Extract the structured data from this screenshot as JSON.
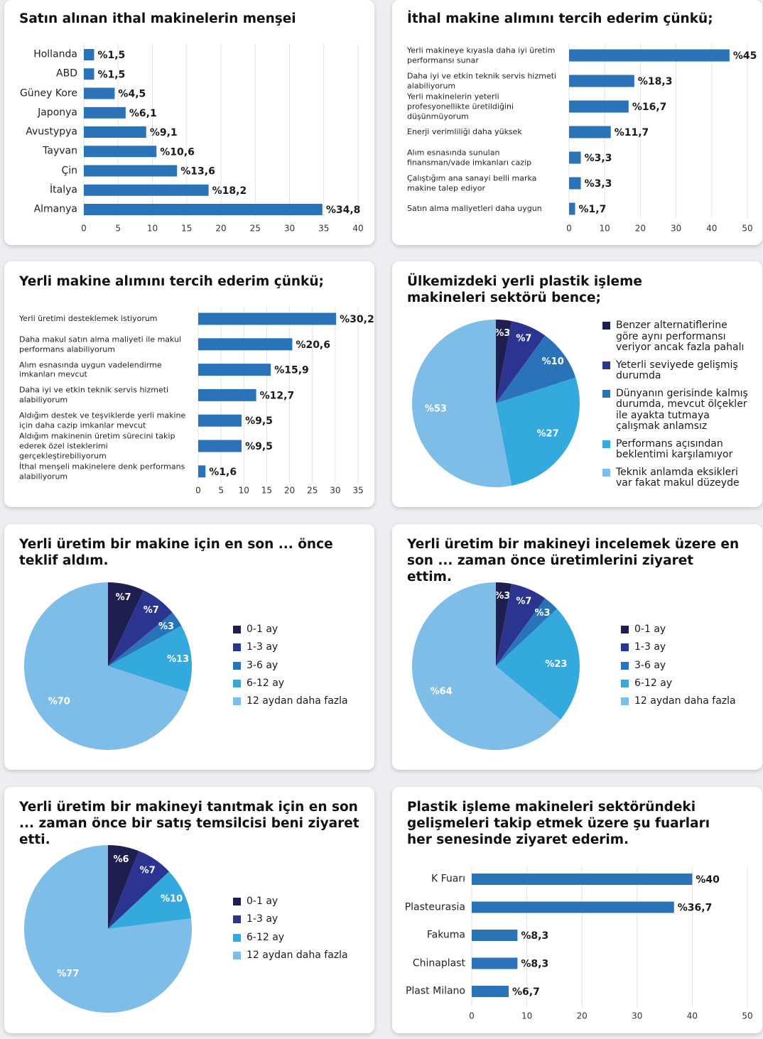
{
  "chart_data": [
    {
      "type": "bar",
      "title": "Satın alınan ithal makinelerin menşei",
      "categories": [
        "Hollanda",
        "ABD",
        "Güney Kore",
        "Japonya",
        "Avustурya",
        "Tayvan",
        "Çin",
        "İtalya",
        "Almanya"
      ],
      "values": [
        1.5,
        1.5,
        4.5,
        6.1,
        9.1,
        10.6,
        13.6,
        18.2,
        34.8
      ],
      "value_labels": [
        "%1,5",
        "%1,5",
        "%4,5",
        "%6,1",
        "%9,1",
        "%10,6",
        "%13,6",
        "%18,2",
        "%34,8"
      ],
      "color": "#2a73b8",
      "xlim": [
        0,
        40
      ],
      "xticks": [
        0,
        5,
        10,
        15,
        20,
        25,
        30,
        35,
        40
      ],
      "grid": true
    },
    {
      "type": "bar",
      "title": "İthal makine alımını tercih ederim çünkü;",
      "categories": [
        "Yerli makineye kıyasla daha iyi üretim performansı sunar",
        "Daha iyi ve etkin teknik servis hizmeti alabiliyorum",
        "Yerli makinelerin yeterli profesyonellikte üretildiğini düşünmüyorum",
        "Enerji verimliliği daha yüksek",
        "Alım esnasında sunulan finansman/vade imkanları cazip",
        "Çalıştığım ana sanayi belli marka makine talep ediyor",
        "Satın alma maliyetleri daha uygun"
      ],
      "values": [
        45,
        18.3,
        16.7,
        11.7,
        3.3,
        3.3,
        1.7
      ],
      "value_labels": [
        "%45",
        "%18,3",
        "%16,7",
        "%11,7",
        "%3,3",
        "%3,3",
        "%1,7"
      ],
      "color": "#2a73b8",
      "xlim": [
        0,
        50
      ],
      "xticks": [
        0,
        10,
        20,
        30,
        40,
        50
      ],
      "grid": true
    },
    {
      "type": "bar",
      "title": "Yerli makine alımını tercih ederim çünkü;",
      "categories": [
        "Yerli üretimi desteklemek istiyorum",
        "Daha makul satın alma maliyeti ile makul performans alabiliyorum",
        "Alım esnasında uygun vadelendirme imkanları mevcut",
        "Daha iyi ve etkin teknik servis hizmeti alabiliyorum",
        "Aldığım destek ve teşviklerde yerli makine için daha cazip imkanlar mevcut",
        "Aldığım makinenin üretim sürecini takip ederek özel isteklerimi gerçekleştirebiliyorum",
        "İthal menşeli makinelere denk performans alabiliyorum"
      ],
      "values": [
        30.2,
        20.6,
        15.9,
        12.7,
        9.5,
        9.5,
        1.6
      ],
      "value_labels": [
        "%30,2",
        "%20,6",
        "%15,9",
        "%12,7",
        "%9,5",
        "%9,5",
        "%1,6"
      ],
      "color": "#2a73b8",
      "xlim": [
        0,
        35
      ],
      "xticks": [
        0,
        5,
        10,
        15,
        20,
        25,
        30,
        35
      ],
      "grid": true
    },
    {
      "type": "pie",
      "title": "Ülkemizdeki yerli plastik işleme makineleri sektörü bence;",
      "categories": [
        "Benzer alternatiflerine göre aynı performansı veriyor ancak fazla pahalı",
        "Yeterli seviyede gelişmiş durumda",
        "Dünyanın gerisinde kalmış durumda, mevcut ölçekler ile ayakta tutmaya çalışmak anlamsız",
        "Performans açısından beklentimi karşılamıyor",
        "Teknik anlamda eksikleri var fakat makul düzeyde"
      ],
      "values": [
        3,
        7,
        10,
        27,
        53
      ],
      "value_labels": [
        "%3",
        "%7",
        "%10",
        "%27",
        "%53"
      ],
      "colors": [
        "#1e1f4f",
        "#2b3590",
        "#2a73b8",
        "#33a9de",
        "#7dbde7"
      ]
    },
    {
      "type": "pie",
      "title": "Yerli üretim bir makine için en son ... önce teklif aldım.",
      "categories": [
        "0-1 ay",
        "1-3 ay",
        "3-6 ay",
        "6-12 ay",
        "12 aydan daha fazla"
      ],
      "values": [
        7,
        7,
        3,
        13,
        70
      ],
      "value_labels": [
        "%7",
        "%7",
        "%3",
        "%13",
        "%70"
      ],
      "colors": [
        "#1e1f4f",
        "#2b3590",
        "#2a73b8",
        "#33a9de",
        "#7dbde7"
      ]
    },
    {
      "type": "pie",
      "title": "Yerli üretim bir makineyi incelemek üzere en son ... zaman önce üretimlerini ziyaret ettim.",
      "categories": [
        "0-1 ay",
        "1-3 ay",
        "3-6 ay",
        "6-12 ay",
        "12 aydan daha fazla"
      ],
      "values": [
        3,
        7,
        3,
        23,
        64
      ],
      "value_labels": [
        "%3",
        "%7",
        "%3",
        "%23",
        "%64"
      ],
      "colors": [
        "#1e1f4f",
        "#2b3590",
        "#2a73b8",
        "#33a9de",
        "#7dbde7"
      ]
    },
    {
      "type": "pie",
      "title": "Yerli üretim bir makineyi tanıtmak için en son ... zaman önce bir satış temsilcisi beni ziyaret etti.",
      "categories": [
        "0-1 ay",
        "1-3 ay",
        "6-12 ay",
        "12 aydan daha fazla"
      ],
      "values": [
        6,
        7,
        10,
        77
      ],
      "value_labels": [
        "%6",
        "%7",
        "%10",
        "%77"
      ],
      "colors": [
        "#1e1f4f",
        "#2b3590",
        "#33a9de",
        "#7dbde7"
      ]
    },
    {
      "type": "bar",
      "title": "Plastik işleme makineleri sektöründeki gelişmeleri takip etmek üzere şu fuarları her senesinde ziyaret ederim.",
      "categories": [
        "K Fuarı",
        "Plasteurasia",
        "Fakuma",
        "Chinaplast",
        "Plast Milano"
      ],
      "values": [
        40,
        36.7,
        8.3,
        8.3,
        6.7
      ],
      "value_labels": [
        "%40",
        "%36,7",
        "%8,3",
        "%8,3",
        "%6,7"
      ],
      "color": "#2a73b8",
      "xlim": [
        0,
        50
      ],
      "xticks": [
        0,
        10,
        20,
        30,
        40,
        50
      ],
      "grid": true
    }
  ]
}
